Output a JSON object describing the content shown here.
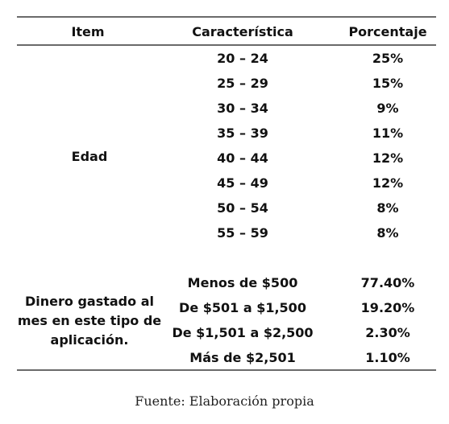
{
  "table": {
    "headers": [
      "Item",
      "Característica",
      "Porcentaje"
    ],
    "groups": [
      {
        "item": "Edad",
        "rows": [
          {
            "caracteristica": "20 – 24",
            "porcentaje": "25%"
          },
          {
            "caracteristica": "25 – 29",
            "porcentaje": "15%"
          },
          {
            "caracteristica": "30 – 34",
            "porcentaje": "9%"
          },
          {
            "caracteristica": "35 – 39",
            "porcentaje": "11%"
          },
          {
            "caracteristica": "40 – 44",
            "porcentaje": "12%"
          },
          {
            "caracteristica": "45 – 49",
            "porcentaje": "12%"
          },
          {
            "caracteristica": "50 – 54",
            "porcentaje": "8%"
          },
          {
            "caracteristica": "55 – 59",
            "porcentaje": "8%"
          }
        ]
      },
      {
        "item": "Dinero gastado al mes en este tipo de aplicación.",
        "rows": [
          {
            "caracteristica": "Menos de $500",
            "porcentaje": "77.40%"
          },
          {
            "caracteristica": "De $501 a $1,500",
            "porcentaje": "19.20%"
          },
          {
            "caracteristica": "De $1,501 a $2,500",
            "porcentaje": "2.30%"
          },
          {
            "caracteristica": "Más de $2,501",
            "porcentaje": "1.10%"
          }
        ]
      }
    ]
  },
  "footer": "Fuente: Elaboración propia"
}
